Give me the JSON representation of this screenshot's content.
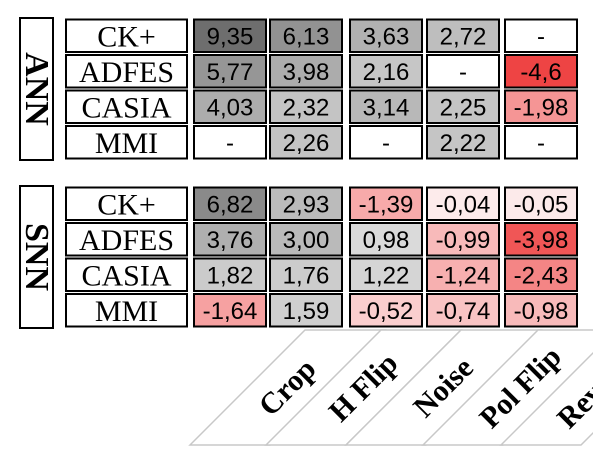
{
  "chart_data": {
    "type": "heatmap",
    "columns": [
      "Crop",
      "H Flip",
      "Noise",
      "Pol Flip",
      "Reverse"
    ],
    "groups": [
      {
        "name": "ANN",
        "rows": [
          {
            "label": "CK+",
            "cells": [
              "9,35",
              "6,13",
              "3,63",
              "2,72",
              "-"
            ]
          },
          {
            "label": "ADFES",
            "cells": [
              "5,77",
              "3,98",
              "2,16",
              "-",
              "-4,6"
            ]
          },
          {
            "label": "CASIA",
            "cells": [
              "4,03",
              "2,32",
              "3,14",
              "2,25",
              "-1,98"
            ]
          },
          {
            "label": "MMI",
            "cells": [
              "-",
              "2,26",
              "-",
              "2,22",
              "-"
            ]
          }
        ]
      },
      {
        "name": "SNN",
        "rows": [
          {
            "label": "CK+",
            "cells": [
              "6,82",
              "2,93",
              "-1,39",
              "-0,04",
              "-0,05"
            ]
          },
          {
            "label": "ADFES",
            "cells": [
              "3,76",
              "3,00",
              "0,98",
              "-0,99",
              "-3,98"
            ]
          },
          {
            "label": "CASIA",
            "cells": [
              "1,82",
              "1,76",
              "1,22",
              "-1,24",
              "-2,43"
            ]
          },
          {
            "label": "MMI",
            "cells": [
              "-1,64",
              "1,59",
              "-0,52",
              "-0,74",
              "-0,98"
            ]
          }
        ]
      }
    ],
    "colors": {
      "positive_max": "#6e6e6e",
      "positive_min": "#f2f2f2",
      "negative_min": "#fdf0f0",
      "negative_max": "#ee4444",
      "empty": "#ffffff",
      "border": "#000000"
    }
  }
}
